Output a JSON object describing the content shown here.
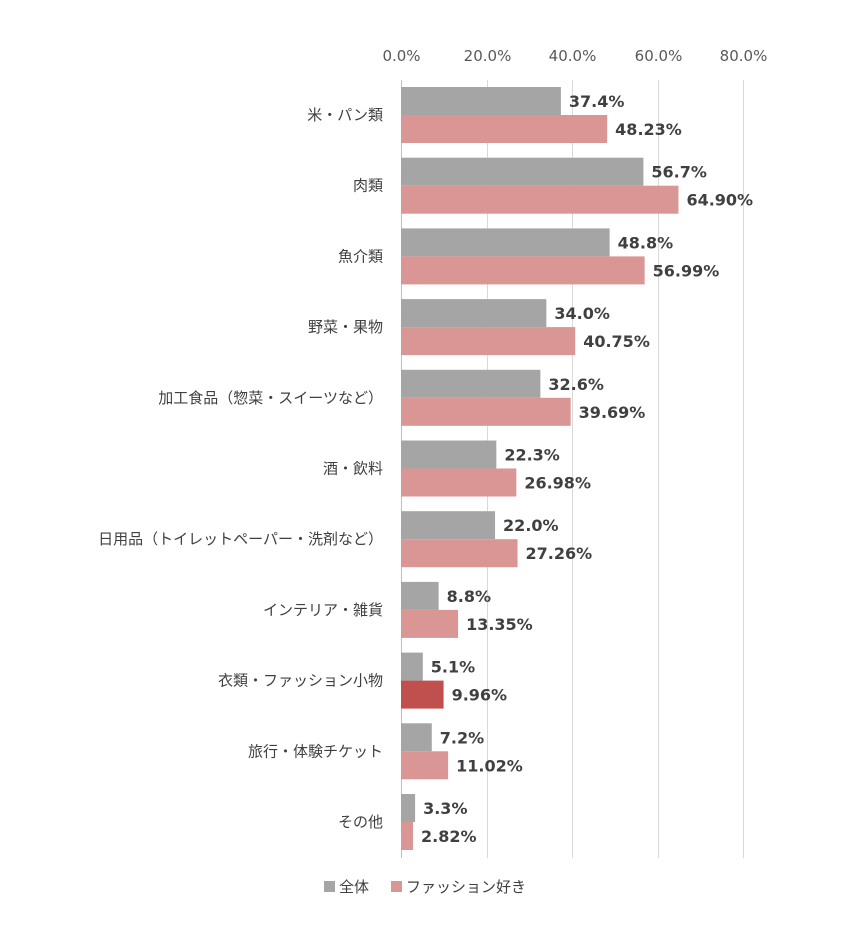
{
  "chart_data": {
    "type": "bar",
    "orientation": "horizontal",
    "categories": [
      "米・パン類",
      "肉類",
      "魚介類",
      "野菜・果物",
      "加工食品（惣菜・スイーツなど）",
      "酒・飲料",
      "日用品（トイレットペーパー・洗剤など）",
      "インテリア・雑貨",
      "衣類・ファッション小物",
      "旅行・体験チケット",
      "その他"
    ],
    "series": [
      {
        "name": "全体",
        "color": "#a5a5a5",
        "values": [
          37.4,
          56.7,
          48.8,
          34.0,
          32.6,
          22.3,
          22.0,
          8.8,
          5.1,
          7.2,
          3.3
        ],
        "labels": [
          "37.4%",
          "56.7%",
          "48.8%",
          "34.0%",
          "32.6%",
          "22.3%",
          "22.0%",
          "8.8%",
          "5.1%",
          "7.2%",
          "3.3%"
        ]
      },
      {
        "name": "ファッション好き",
        "color": "#da9694",
        "highlight_color": "#c0504d",
        "highlight_index": 8,
        "values": [
          48.23,
          64.9,
          56.99,
          40.75,
          39.69,
          26.98,
          27.26,
          13.35,
          9.96,
          11.02,
          2.82
        ],
        "labels": [
          "48.23%",
          "64.90%",
          "56.99%",
          "40.75%",
          "39.69%",
          "26.98%",
          "27.26%",
          "13.35%",
          "9.96%",
          "11.02%",
          "2.82%"
        ]
      }
    ],
    "xlim": [
      0,
      80
    ],
    "ticks": [
      0,
      20,
      40,
      60,
      80
    ],
    "tick_labels": [
      "0.0%",
      "20.0%",
      "40.0%",
      "60.0%",
      "80.0%"
    ],
    "axis_position": "top",
    "grid": true,
    "gridline_color": "#d9d9d9",
    "legend": "bottom"
  }
}
